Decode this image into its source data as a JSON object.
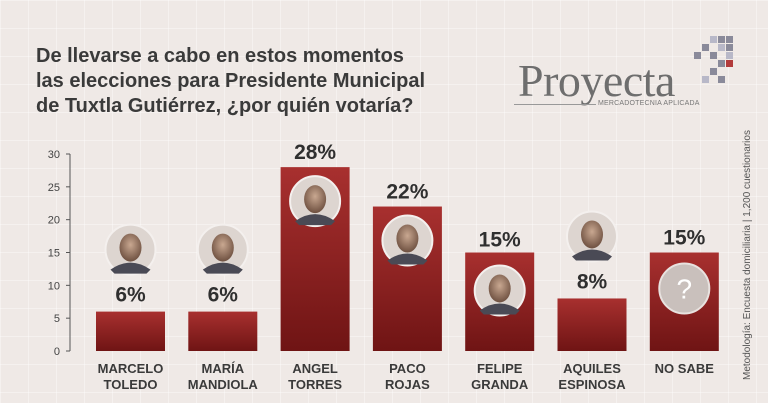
{
  "title_lines": [
    "De llevarse a cabo en estos momentos",
    "las elecciones para Presidente Municipal",
    "de Tuxtla Gutiérrez, ¿por quién votaría?"
  ],
  "logo": {
    "word": "Proyecta",
    "tagline": "MERCADOTECNIA APLICADA"
  },
  "side_note": "Metodología: Encuesta domiciliaria | 1,200 cuestionarios",
  "colors": {
    "bar_top": "#a8302f",
    "bar_bottom": "#6f1414",
    "label": "#2f2f2f",
    "axis": "#555555"
  },
  "chart_data": {
    "type": "bar",
    "title": "De llevarse a cabo en estos momentos las elecciones para Presidente Municipal de Tuxtla Gutiérrez, ¿por quién votaría?",
    "categories": [
      [
        "MARCELO",
        "TOLEDO"
      ],
      [
        "MARÍA",
        "MANDIOLA"
      ],
      [
        "ANGEL",
        "TORRES"
      ],
      [
        "PACO",
        "ROJAS"
      ],
      [
        "FELIPE",
        "GRANDA"
      ],
      [
        "AQUILES",
        "ESPINOSA"
      ],
      [
        "NO SABE"
      ]
    ],
    "values": [
      6,
      6,
      28,
      22,
      15,
      8,
      15
    ],
    "value_labels": [
      "6%",
      "6%",
      "28%",
      "22%",
      "15%",
      "8%",
      "15%"
    ],
    "yticks": [
      0,
      5,
      10,
      15,
      20,
      25,
      30
    ],
    "ylim": [
      0,
      30
    ],
    "grid": false,
    "icons": [
      "candidate-photo-icon",
      "candidate-photo-icon",
      "candidate-photo-icon",
      "candidate-photo-icon",
      "candidate-photo-icon",
      "candidate-photo-icon",
      "question-mark-icon"
    ],
    "question_mark": "?"
  }
}
